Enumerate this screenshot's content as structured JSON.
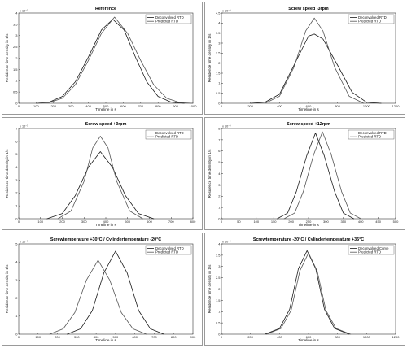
{
  "chart_data": [
    {
      "type": "line",
      "title": "Reference",
      "xlabel": "Timeline in s",
      "ylabel": "Residence time density in 1/s",
      "y_exponent": "x 10⁻³",
      "xlim": [
        0,
        1000
      ],
      "ylim": [
        0,
        4
      ],
      "xticks": [
        0,
        100,
        200,
        300,
        400,
        500,
        600,
        700,
        800,
        900,
        1000
      ],
      "yticks": [
        0,
        0.5,
        1,
        1.5,
        2,
        2.5,
        3,
        3.5,
        4
      ],
      "legend": "top-right",
      "series": [
        {
          "name": "Deconvolved RTD",
          "color": "#1a1a1a",
          "x": [
            100,
            175,
            250,
            325,
            400,
            475,
            540,
            605,
            670,
            735,
            800,
            875,
            950
          ],
          "y": [
            0.0,
            0.05,
            0.3,
            0.95,
            2.05,
            3.25,
            3.72,
            3.25,
            2.05,
            0.95,
            0.3,
            0.05,
            0.0
          ]
        },
        {
          "name": "Predicted RTD",
          "color": "#555555",
          "x": [
            100,
            175,
            250,
            325,
            400,
            475,
            550,
            625,
            700,
            775,
            850,
            925,
            1000
          ],
          "y": [
            0.0,
            0.03,
            0.22,
            0.82,
            1.9,
            3.1,
            3.82,
            3.1,
            1.9,
            0.82,
            0.22,
            0.03,
            0.0
          ]
        }
      ]
    },
    {
      "type": "line",
      "title": "Screw speed -3rpm",
      "xlabel": "Timeline in s",
      "ylabel": "Residence time density in 1/s",
      "y_exponent": "x 10⁻³",
      "xlim": [
        0,
        1200
      ],
      "ylim": [
        0,
        4.5
      ],
      "xticks": [
        0,
        200,
        400,
        600,
        800,
        1000,
        1200
      ],
      "yticks": [
        0,
        0.5,
        1,
        1.5,
        2,
        2.5,
        3,
        3.5,
        4,
        4.5
      ],
      "legend": "top-right",
      "series": [
        {
          "name": "Deconvolved RTD",
          "color": "#1a1a1a",
          "x": [
            200,
            300,
            400,
            500,
            600,
            640,
            700,
            800,
            900,
            1000,
            1100
          ],
          "y": [
            0.0,
            0.05,
            0.45,
            1.9,
            3.35,
            3.45,
            3.2,
            1.9,
            0.55,
            0.05,
            0.0
          ]
        },
        {
          "name": "Predicted RTD",
          "color": "#555555",
          "x": [
            300,
            400,
            500,
            580,
            640,
            700,
            780,
            880,
            980
          ],
          "y": [
            0.0,
            0.35,
            1.8,
            3.6,
            4.25,
            3.6,
            1.8,
            0.35,
            0.0
          ]
        }
      ]
    },
    {
      "type": "line",
      "title": "Screw speed +3rpm",
      "xlabel": "Timeline in s",
      "ylabel": "Residence time density in 1/s",
      "y_exponent": "x 10⁻³",
      "xlim": [
        0,
        800
      ],
      "ylim": [
        0,
        7
      ],
      "xticks": [
        0,
        100,
        200,
        300,
        400,
        500,
        600,
        700,
        800
      ],
      "yticks": [
        0,
        1,
        2,
        3,
        4,
        5,
        6,
        7
      ],
      "legend": "top-right",
      "series": [
        {
          "name": "Deconvolved RTD",
          "color": "#1a1a1a",
          "x": [
            130,
            200,
            260,
            320,
            375,
            430,
            490,
            550,
            620
          ],
          "y": [
            0.0,
            0.4,
            1.8,
            4.0,
            5.2,
            4.0,
            1.8,
            0.4,
            0.0
          ]
        },
        {
          "name": "Predicted RTD",
          "color": "#555555",
          "x": [
            180,
            240,
            300,
            340,
            375,
            410,
            450,
            510,
            570
          ],
          "y": [
            0.0,
            0.6,
            2.9,
            5.5,
            6.4,
            5.5,
            2.9,
            0.6,
            0.0
          ]
        }
      ]
    },
    {
      "type": "line",
      "title": "Screw speed +12rpm",
      "xlabel": "Timeline in s",
      "ylabel": "Residence time density in 1/s",
      "y_exponent": "x 10⁻³",
      "xlim": [
        0,
        500
      ],
      "ylim": [
        0,
        8
      ],
      "xticks": [
        0,
        50,
        100,
        150,
        200,
        250,
        300,
        350,
        400,
        450,
        500
      ],
      "yticks": [
        0,
        1,
        2,
        3,
        4,
        5,
        6,
        7,
        8
      ],
      "legend": "top-right",
      "series": [
        {
          "name": "Deconvolved RTD",
          "color": "#1a1a1a",
          "x": [
            160,
            190,
            215,
            245,
            270,
            295,
            325,
            350,
            380
          ],
          "y": [
            0.0,
            0.5,
            2.4,
            5.6,
            7.6,
            5.6,
            2.4,
            0.5,
            0.0
          ]
        },
        {
          "name": "Predicted RTD",
          "color": "#555555",
          "x": [
            180,
            210,
            235,
            265,
            290,
            315,
            345,
            370,
            400
          ],
          "y": [
            0.0,
            0.5,
            2.4,
            5.7,
            7.7,
            5.7,
            2.4,
            0.5,
            0.0
          ]
        }
      ]
    },
    {
      "type": "line",
      "title": "Screwtemperature +30°C / Cylindertemperature -20°C",
      "xlabel": "Timeline in s",
      "ylabel": "Residence time density in 1/s",
      "y_exponent": "x 10⁻³",
      "xlim": [
        0,
        900
      ],
      "ylim": [
        0,
        5
      ],
      "xticks": [
        0,
        100,
        200,
        300,
        400,
        500,
        600,
        700,
        800,
        900
      ],
      "yticks": [
        0,
        1,
        2,
        3,
        4,
        5
      ],
      "legend": "top-right",
      "series": [
        {
          "name": "Deconvolved RTD",
          "color": "#1a1a1a",
          "x": [
            250,
            320,
            380,
            440,
            500,
            560,
            620,
            680,
            750
          ],
          "y": [
            0.0,
            0.3,
            1.3,
            3.4,
            4.6,
            3.4,
            1.3,
            0.3,
            0.0
          ]
        },
        {
          "name": "Predicted RTD",
          "color": "#555555",
          "x": [
            160,
            230,
            290,
            350,
            410,
            470,
            530,
            590,
            660
          ],
          "y": [
            0.0,
            0.3,
            1.2,
            3.0,
            4.1,
            3.0,
            1.2,
            0.3,
            0.0
          ]
        }
      ]
    },
    {
      "type": "line",
      "title": "Screwtemperature -20°C / Cylindertemperature +35°C",
      "xlabel": "Timeline in s",
      "ylabel": "Residence time density in 1/s",
      "y_exponent": "x 10⁻³",
      "xlim": [
        0,
        1200
      ],
      "ylim": [
        0,
        4
      ],
      "xticks": [
        0,
        200,
        400,
        600,
        800,
        1000,
        1200
      ],
      "yticks": [
        0,
        0.5,
        1,
        1.5,
        2,
        2.5,
        3,
        3.5,
        4
      ],
      "legend": "top-right",
      "series": [
        {
          "name": "Deconvolved Curve",
          "color": "#1a1a1a",
          "x": [
            300,
            400,
            470,
            530,
            590,
            650,
            710,
            780,
            880
          ],
          "y": [
            0.0,
            0.25,
            1.1,
            2.9,
            3.7,
            2.9,
            1.1,
            0.25,
            0.0
          ]
        },
        {
          "name": "Predicted RTD",
          "color": "#555555",
          "x": [
            310,
            410,
            480,
            540,
            600,
            660,
            720,
            790,
            890
          ],
          "y": [
            0.0,
            0.25,
            1.05,
            2.8,
            3.6,
            2.8,
            1.05,
            0.25,
            0.0
          ]
        }
      ]
    }
  ]
}
